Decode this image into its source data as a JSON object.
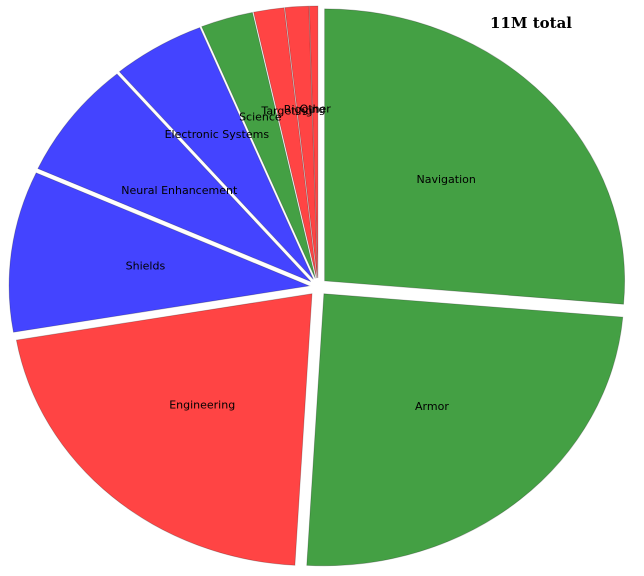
{
  "chart_data": {
    "type": "pie",
    "title": "11M total",
    "categories": [
      "Navigation",
      "Armor",
      "Engineering",
      "Shields",
      "Neural Enhancement",
      "Electronic Systems",
      "Science",
      "Targeting",
      "Rigging",
      "Other"
    ],
    "values": [
      2.9,
      2.7,
      2.35,
      1.05,
      0.77,
      0.55,
      0.31,
      0.18,
      0.14,
      0.05
    ],
    "colors": [
      "#44a044",
      "#44a044",
      "#ff4444",
      "#4444ff",
      "#4444ff",
      "#4444ff",
      "#44a044",
      "#ff4444",
      "#ff4444",
      "#ff4444"
    ]
  }
}
